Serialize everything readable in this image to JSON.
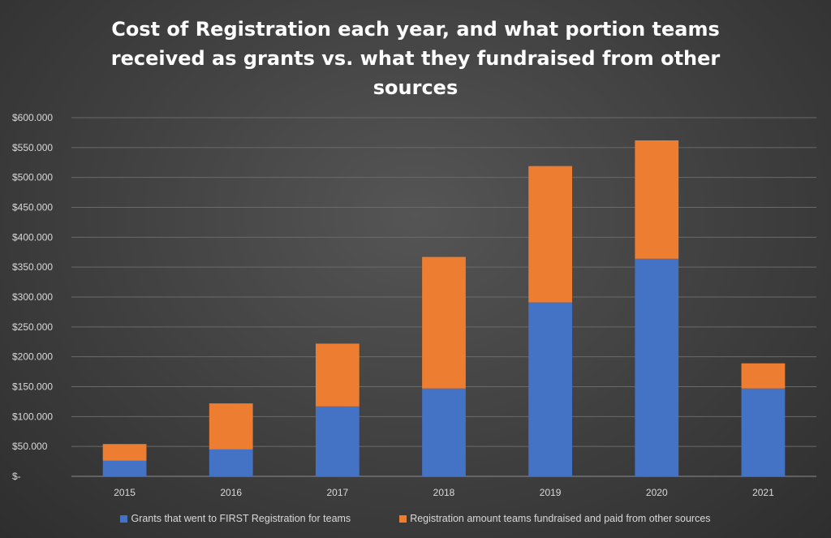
{
  "chart_data": {
    "type": "bar",
    "stacked": true,
    "title_lines": [
      "Cost of Registration each year, and what portion teams",
      "received as grants vs. what they fundraised from other",
      "sources"
    ],
    "categories": [
      "2015",
      "2016",
      "2017",
      "2018",
      "2019",
      "2020",
      "2021"
    ],
    "series": [
      {
        "name": "Grants that went to FIRST Registration for teams",
        "color": "#4472c4",
        "values": [
          26000,
          45000,
          117000,
          147000,
          291000,
          364000,
          147000
        ]
      },
      {
        "name": "Registration amount teams fundraised and paid from other sources",
        "color": "#ed7d31",
        "values": [
          28000,
          77000,
          105000,
          220000,
          228000,
          198000,
          42000
        ]
      }
    ],
    "ylim": [
      0,
      600000
    ],
    "yticks": [
      0,
      50000,
      100000,
      150000,
      200000,
      250000,
      300000,
      350000,
      400000,
      450000,
      500000,
      550000,
      600000
    ],
    "ytick_labels": [
      "$-",
      "$50.000",
      "$100.000",
      "$150.000",
      "$200.000",
      "$250.000",
      "$300.000",
      "$350.000",
      "$400.000",
      "$450.000",
      "$500.000",
      "$550.000",
      "$600.000"
    ],
    "grid": true,
    "legend_position": "bottom"
  }
}
